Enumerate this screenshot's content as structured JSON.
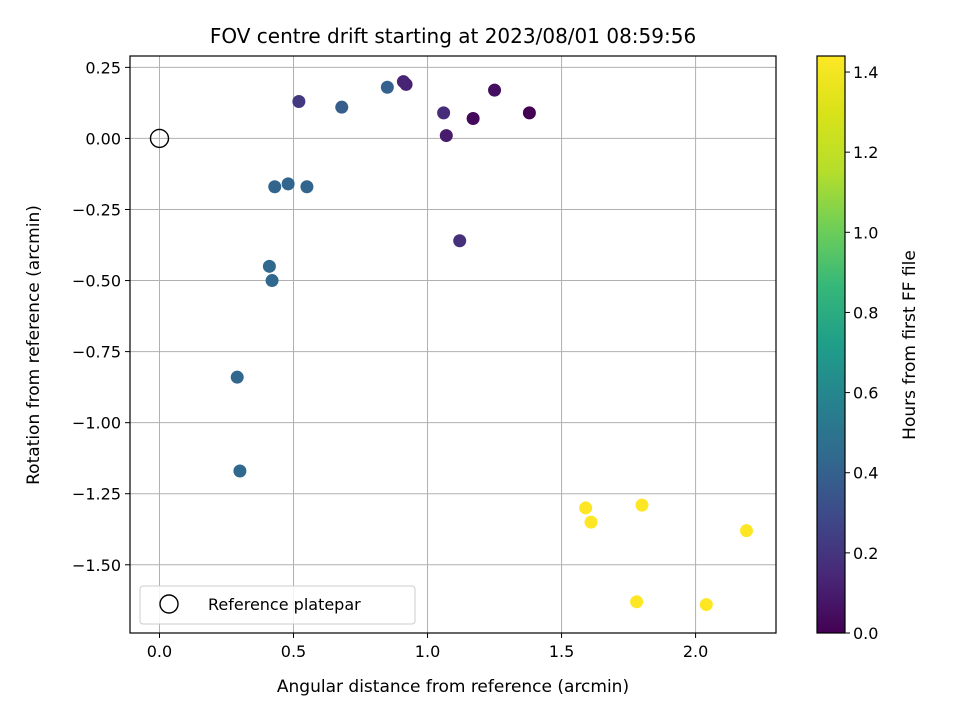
{
  "chart_data": {
    "type": "scatter",
    "title": "FOV centre drift starting at 2023/08/01 08:59:56",
    "xlabel": "Angular distance from reference (arcmin)",
    "ylabel": "Rotation from reference (arcmin)",
    "xlim": [
      -0.11,
      2.3
    ],
    "ylim": [
      -1.74,
      0.29
    ],
    "xticks": [
      0.0,
      0.5,
      1.0,
      1.5,
      2.0
    ],
    "xtick_labels": [
      "0.0",
      "0.5",
      "1.0",
      "1.5",
      "2.0"
    ],
    "yticks": [
      0.25,
      0.0,
      -0.25,
      -0.5,
      -0.75,
      -1.0,
      -1.25,
      -1.5
    ],
    "ytick_labels": [
      "0.25",
      "0.00",
      "−0.25",
      "−0.50",
      "−0.75",
      "−1.00",
      "−1.25",
      "−1.50"
    ],
    "grid": true,
    "colormap": "viridis",
    "colorbar": {
      "label": "Hours from first FF file",
      "range": [
        0.0,
        1.44
      ],
      "ticks": [
        0.0,
        0.2,
        0.4,
        0.6,
        0.8,
        1.0,
        1.2,
        1.4
      ],
      "tick_labels": [
        "0.0",
        "0.2",
        "0.4",
        "0.6",
        "0.8",
        "1.0",
        "1.2",
        "1.4"
      ]
    },
    "reference_point": {
      "name": "Reference platepar",
      "x": 0.0,
      "y": 0.0
    },
    "legend": {
      "location": "lower left",
      "entries": [
        "Reference platepar"
      ]
    },
    "points": [
      {
        "x": 1.38,
        "y": 0.09,
        "hours": 0.0
      },
      {
        "x": 1.17,
        "y": 0.07,
        "hours": 0.03
      },
      {
        "x": 1.25,
        "y": 0.17,
        "hours": 0.05
      },
      {
        "x": 1.07,
        "y": 0.01,
        "hours": 0.1
      },
      {
        "x": 0.92,
        "y": 0.19,
        "hours": 0.12
      },
      {
        "x": 0.91,
        "y": 0.2,
        "hours": 0.13
      },
      {
        "x": 1.06,
        "y": 0.09,
        "hours": 0.16
      },
      {
        "x": 1.12,
        "y": -0.36,
        "hours": 0.18
      },
      {
        "x": 0.52,
        "y": 0.13,
        "hours": 0.22
      },
      {
        "x": 0.68,
        "y": 0.11,
        "hours": 0.38
      },
      {
        "x": 0.85,
        "y": 0.18,
        "hours": 0.4
      },
      {
        "x": 0.43,
        "y": -0.17,
        "hours": 0.42
      },
      {
        "x": 0.48,
        "y": -0.16,
        "hours": 0.42
      },
      {
        "x": 0.55,
        "y": -0.17,
        "hours": 0.42
      },
      {
        "x": 0.41,
        "y": -0.45,
        "hours": 0.43
      },
      {
        "x": 0.42,
        "y": -0.5,
        "hours": 0.43
      },
      {
        "x": 0.29,
        "y": -0.84,
        "hours": 0.43
      },
      {
        "x": 0.3,
        "y": -1.17,
        "hours": 0.44
      },
      {
        "x": 1.59,
        "y": -1.3,
        "hours": 1.44
      },
      {
        "x": 1.61,
        "y": -1.35,
        "hours": 1.44
      },
      {
        "x": 1.8,
        "y": -1.29,
        "hours": 1.44
      },
      {
        "x": 2.19,
        "y": -1.38,
        "hours": 1.44
      },
      {
        "x": 1.78,
        "y": -1.63,
        "hours": 1.44
      },
      {
        "x": 2.04,
        "y": -1.64,
        "hours": 1.44
      }
    ]
  }
}
